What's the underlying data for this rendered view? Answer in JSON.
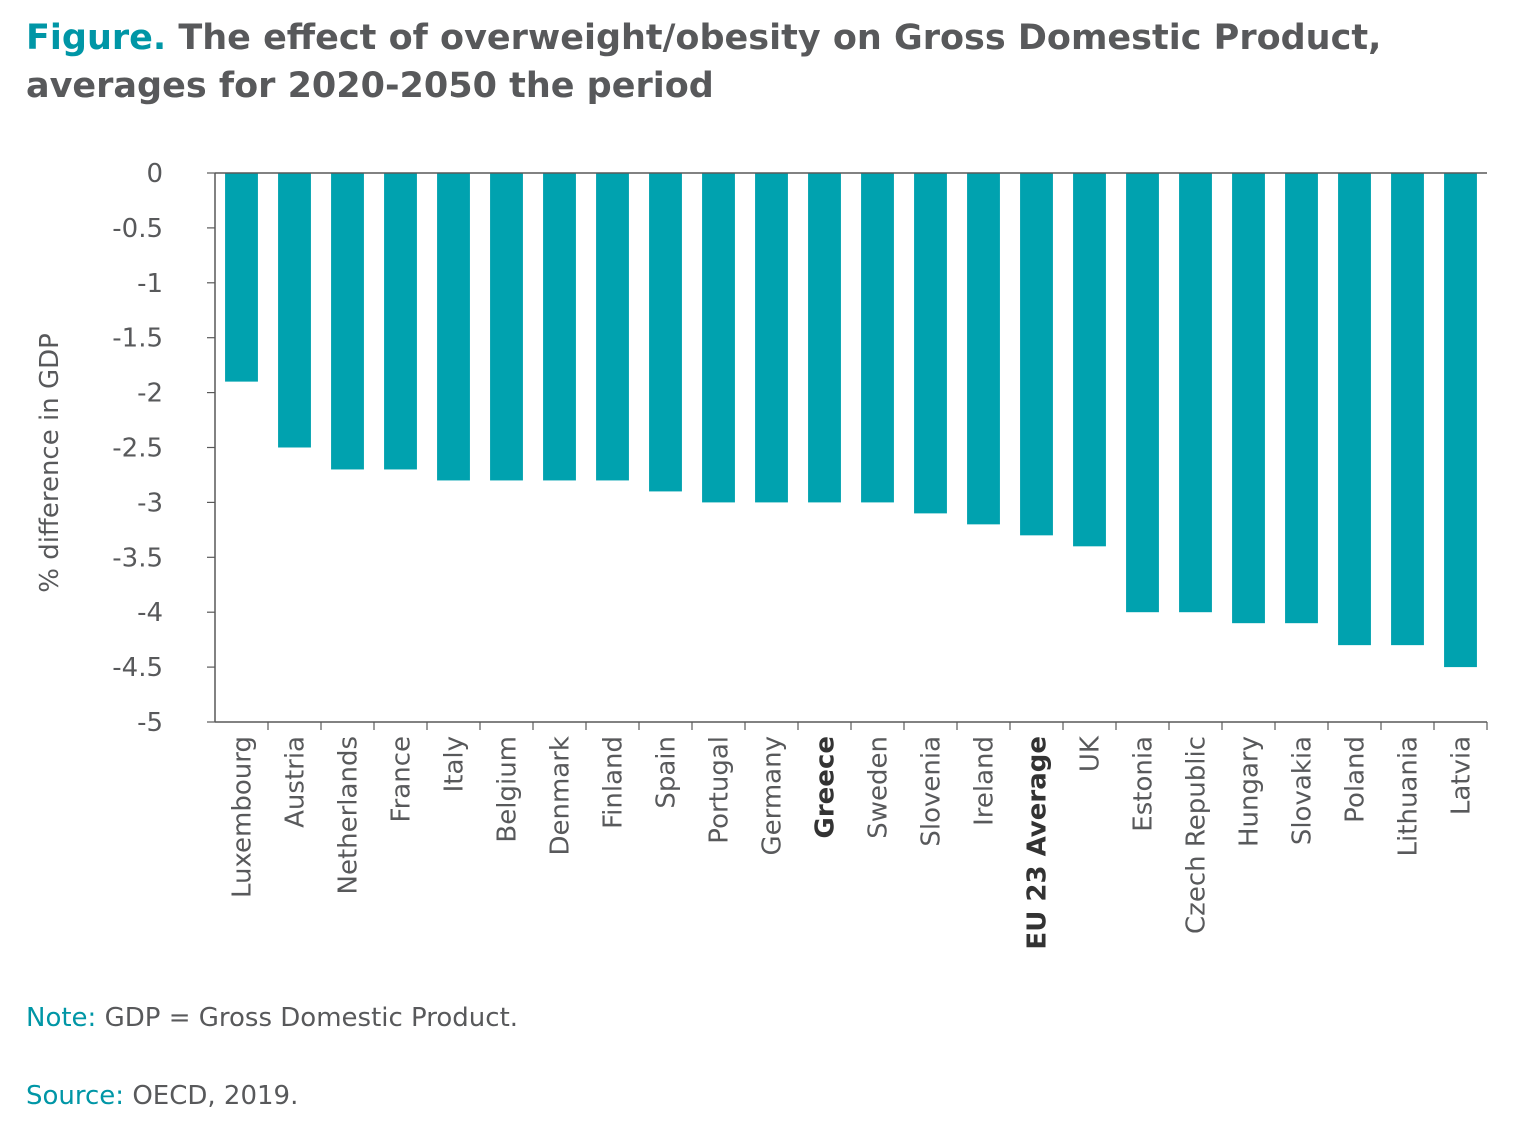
{
  "header": {
    "lead": "Figure.",
    "title": "The effect of overweight/obesity on Gross Domestic Product, averages for 2020-2050 the period"
  },
  "colors": {
    "bar": "#00a2af",
    "accent": "#0096a6",
    "text": "#58595b",
    "axis": "#595959"
  },
  "chart_data": {
    "type": "bar",
    "title": "The effect of overweight/obesity on Gross Domestic Product, averages for 2020-2050 the period",
    "xlabel": "",
    "ylabel": "% difference in GDP",
    "ylim": [
      -5,
      0
    ],
    "yticks": [
      "0",
      "-0.5",
      "-1",
      "-1.5",
      "-2",
      "-2.5",
      "-3",
      "-3.5",
      "-4",
      "-4.5",
      "-5"
    ],
    "grid": false,
    "categories": [
      "Luxembourg",
      "Austria",
      "Netherlands",
      "France",
      "Italy",
      "Belgium",
      "Denmark",
      "Finland",
      "Spain",
      "Portugal",
      "Germany",
      "Greece",
      "Sweden",
      "Slovenia",
      "Ireland",
      "EU 23 Average",
      "UK",
      "Estonia",
      "Czech Republic",
      "Hungary",
      "Slovakia",
      "Poland",
      "Lithuania",
      "Latvia"
    ],
    "highlighted": [
      "Greece",
      "EU 23 Average"
    ],
    "values": [
      -1.9,
      -2.5,
      -2.7,
      -2.7,
      -2.8,
      -2.8,
      -2.8,
      -2.8,
      -2.9,
      -3.0,
      -3.0,
      -3.0,
      -3.0,
      -3.1,
      -3.2,
      -3.3,
      -3.4,
      -4.0,
      -4.0,
      -4.1,
      -4.1,
      -4.3,
      -4.3,
      -4.5
    ]
  },
  "footer": {
    "note_key": "Note:",
    "note_text": "GDP = Gross Domestic Product.",
    "source_key": "Source:",
    "source_text": "OECD, 2019."
  }
}
